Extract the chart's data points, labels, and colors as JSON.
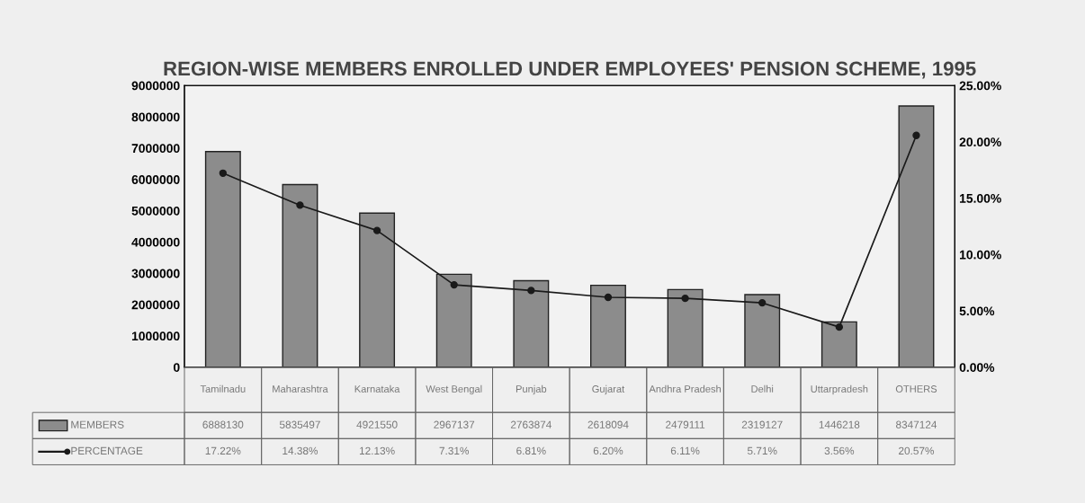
{
  "chart_data": {
    "type": "bar",
    "title": "REGION-WISE MEMBERS ENROLLED UNDER EMPLOYEES' PENSION SCHEME, 1995",
    "categories": [
      "Tamilnadu",
      "Maharashtra",
      "Karnataka",
      "West Bengal",
      "Punjab",
      "Gujarat",
      "Andhra Pradesh",
      "Delhi",
      "Uttarpradesh",
      "OTHERS"
    ],
    "series": [
      {
        "name": "MEMBERS",
        "color": "#8c8c8c",
        "values": [
          6888130,
          5835497,
          4921550,
          2967137,
          2763874,
          2618094,
          2479111,
          2319127,
          1446218,
          8347124
        ],
        "value_labels": [
          "6888130",
          "5835497",
          "4921550",
          "2967137",
          "2763874",
          "2618094",
          "2479111",
          "2319127",
          "1446218",
          "8347124"
        ]
      },
      {
        "name": "PERCENTAGE",
        "type": "line",
        "axis": "y2",
        "color": "#1a1a1a",
        "marker": "circle",
        "values": [
          17.22,
          14.38,
          12.13,
          7.31,
          6.81,
          6.2,
          6.11,
          5.71,
          3.56,
          20.57
        ],
        "value_labels": [
          "17.22%",
          "14.38%",
          "12.13%",
          "7.31%",
          "6.81%",
          "6.20%",
          "6.11%",
          "5.71%",
          "3.56%",
          "20.57%"
        ]
      }
    ],
    "ylim": [
      0,
      9000000
    ],
    "yticks": [
      0,
      1000000,
      2000000,
      3000000,
      4000000,
      5000000,
      6000000,
      7000000,
      8000000,
      9000000
    ],
    "y2lim": [
      0,
      25
    ],
    "y2ticks": [
      {
        "value": 0,
        "label": "0.00%"
      },
      {
        "value": 5,
        "label": "5.00%"
      },
      {
        "value": 10,
        "label": "10.00%"
      },
      {
        "value": 15,
        "label": "15.00%"
      },
      {
        "value": 20,
        "label": "20.00%"
      },
      {
        "value": 25,
        "label": "25.00%"
      }
    ],
    "legend": "bottom"
  }
}
